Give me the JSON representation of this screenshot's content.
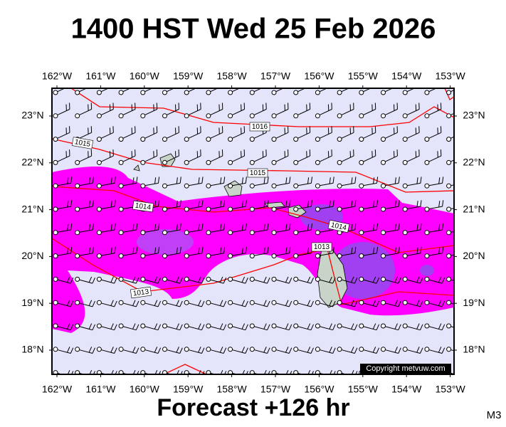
{
  "header": {
    "title": "1400 HST Wed 25 Feb 2026"
  },
  "map": {
    "longitude_labels": [
      "162°W",
      "161°W",
      "160°W",
      "159°W",
      "158°W",
      "157°W",
      "156°W",
      "155°W",
      "154°W",
      "153°W"
    ],
    "latitude_labels": [
      "23°N",
      "22°N",
      "21°N",
      "20°N",
      "19°N",
      "18°N"
    ],
    "isobar_labels": [
      1016,
      1015,
      1015,
      1014,
      1014,
      1013,
      1013
    ],
    "copyright": "Copyright metvuw.com"
  },
  "footer": {
    "forecast": "Forecast +126 hr",
    "model": "M3"
  }
}
